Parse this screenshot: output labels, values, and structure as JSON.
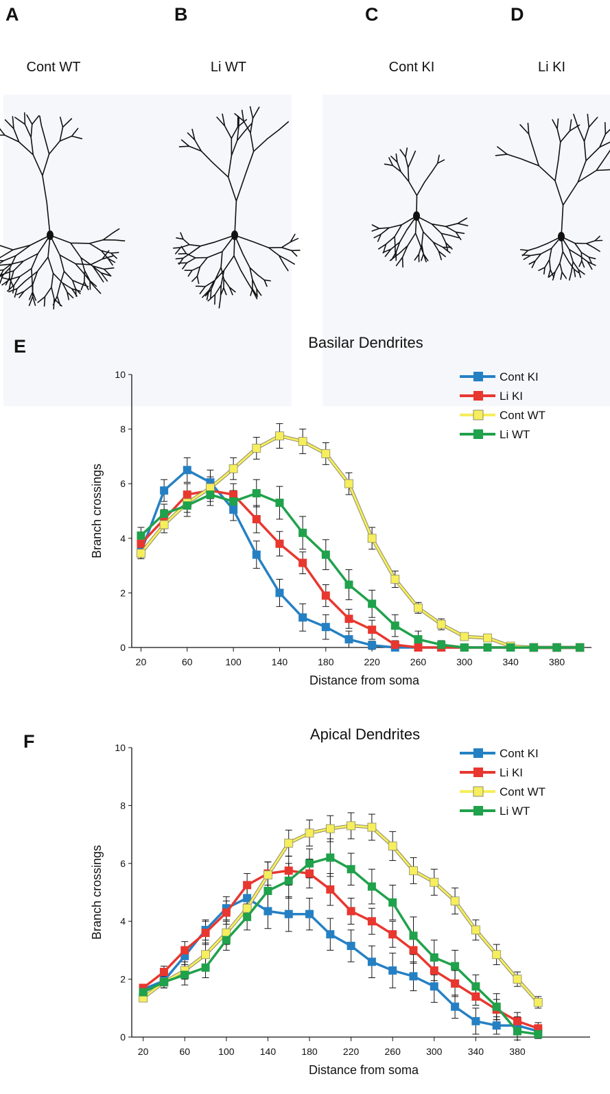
{
  "panels": {
    "labels": [
      "A",
      "B",
      "C",
      "D",
      "E",
      "F"
    ],
    "neuron_titles": [
      "Cont WT",
      "Li WT",
      "Cont KI",
      "Li KI"
    ]
  },
  "chart_data": [
    {
      "type": "line",
      "title": "Basilar Dendrites",
      "x_label": "Distance from soma",
      "y_label": "Branch crossings",
      "x": [
        20,
        40,
        60,
        80,
        100,
        120,
        140,
        160,
        180,
        200,
        220,
        240,
        260,
        280,
        300,
        320,
        340,
        360,
        380,
        400
      ],
      "xlim": [
        12,
        410
      ],
      "xticks": [
        20,
        60,
        100,
        140,
        180,
        220,
        260,
        300,
        340,
        380
      ],
      "ylim": [
        0,
        10
      ],
      "yticks": [
        0,
        2,
        4,
        6,
        8,
        10
      ],
      "legend": "upper right",
      "marker": "square",
      "series": [
        {
          "name": "Cont KI",
          "color": "#2580c3",
          "values": [
            3.5,
            5.75,
            6.5,
            6.05,
            5.05,
            3.4,
            2.0,
            1.1,
            0.75,
            0.3,
            0.08,
            0,
            0,
            0,
            0,
            0,
            0,
            0,
            0,
            0
          ],
          "errors": [
            0.2,
            0.4,
            0.45,
            0.45,
            0.4,
            0.5,
            0.5,
            0.5,
            0.45,
            0.3,
            0.15,
            0.05,
            0,
            0,
            0,
            0,
            0,
            0,
            0,
            0
          ]
        },
        {
          "name": "Li KI",
          "color": "#e8372f",
          "values": [
            3.8,
            4.7,
            5.6,
            5.75,
            5.6,
            4.7,
            3.8,
            3.1,
            1.9,
            1.05,
            0.65,
            0.1,
            0,
            0,
            0,
            0,
            0,
            0,
            0,
            0
          ],
          "errors": [
            0.3,
            0.35,
            0.4,
            0.4,
            0.4,
            0.5,
            0.45,
            0.4,
            0.4,
            0.35,
            0.35,
            0.15,
            0.05,
            0,
            0,
            0,
            0,
            0,
            0,
            0
          ]
        },
        {
          "name": "Cont WT",
          "color": "#f6ee5c",
          "edge": "#8c8a6e",
          "values": [
            3.45,
            4.5,
            5.3,
            5.85,
            6.55,
            7.3,
            7.75,
            7.55,
            7.1,
            6.0,
            4.0,
            2.5,
            1.45,
            0.85,
            0.4,
            0.35,
            0.05,
            0,
            0,
            0
          ],
          "errors": [
            0.2,
            0.3,
            0.35,
            0.4,
            0.4,
            0.4,
            0.45,
            0.45,
            0.4,
            0.4,
            0.4,
            0.3,
            0.2,
            0.2,
            0.1,
            0.1,
            0.05,
            0,
            0,
            0
          ]
        },
        {
          "name": "Li WT",
          "color": "#20a14b",
          "values": [
            4.1,
            4.9,
            5.2,
            5.6,
            5.35,
            5.65,
            5.3,
            4.2,
            3.4,
            2.3,
            1.6,
            0.8,
            0.3,
            0.1,
            0,
            0,
            0,
            0,
            0,
            0
          ],
          "errors": [
            0.3,
            0.35,
            0.4,
            0.4,
            0.4,
            0.5,
            0.6,
            0.6,
            0.55,
            0.55,
            0.5,
            0.4,
            0.3,
            0.15,
            0.05,
            0,
            0,
            0,
            0,
            0
          ]
        }
      ]
    },
    {
      "type": "line",
      "title": "Apical Dendrites",
      "x_label": "Distance from soma",
      "y_label": "Branch crossings",
      "x": [
        20,
        40,
        60,
        80,
        100,
        120,
        140,
        160,
        180,
        200,
        220,
        240,
        260,
        280,
        300,
        320,
        340,
        360,
        380,
        400
      ],
      "xlim": [
        9,
        450
      ],
      "xticks": [
        20,
        60,
        100,
        140,
        180,
        220,
        260,
        300,
        340,
        380
      ],
      "ylim": [
        0,
        10
      ],
      "yticks": [
        0,
        2,
        4,
        6,
        8,
        10
      ],
      "legend": "upper right",
      "marker": "square",
      "series": [
        {
          "name": "Cont KI",
          "color": "#2580c3",
          "values": [
            1.65,
            1.95,
            2.8,
            3.7,
            4.45,
            4.8,
            4.35,
            4.25,
            4.25,
            3.55,
            3.15,
            2.6,
            2.3,
            2.1,
            1.75,
            1.05,
            0.55,
            0.4,
            0.4,
            0.2
          ],
          "errors": [
            0.1,
            0.15,
            0.3,
            0.35,
            0.4,
            0.45,
            0.6,
            0.6,
            0.55,
            0.55,
            0.55,
            0.55,
            0.6,
            0.5,
            0.55,
            0.4,
            0.45,
            0.3,
            0.3,
            0.15
          ]
        },
        {
          "name": "Li KI",
          "color": "#e8372f",
          "values": [
            1.7,
            2.25,
            3.0,
            3.6,
            4.3,
            5.25,
            5.65,
            5.75,
            5.65,
            5.1,
            4.35,
            4.0,
            3.55,
            3.0,
            2.3,
            1.85,
            1.4,
            0.95,
            0.55,
            0.3
          ],
          "errors": [
            0.1,
            0.2,
            0.3,
            0.4,
            0.4,
            0.4,
            0.4,
            0.5,
            0.5,
            0.55,
            0.45,
            0.45,
            0.45,
            0.45,
            0.35,
            0.45,
            0.3,
            0.35,
            0.3,
            0.2
          ]
        },
        {
          "name": "Cont WT",
          "color": "#f6ee5c",
          "edge": "#8c8a6e",
          "values": [
            1.35,
            1.9,
            2.3,
            2.85,
            3.6,
            4.45,
            5.6,
            6.7,
            7.05,
            7.2,
            7.3,
            7.25,
            6.6,
            5.75,
            5.35,
            4.7,
            3.7,
            2.85,
            2.0,
            1.2
          ],
          "errors": [
            0.1,
            0.2,
            0.3,
            0.4,
            0.4,
            0.4,
            0.45,
            0.45,
            0.45,
            0.45,
            0.45,
            0.45,
            0.5,
            0.45,
            0.45,
            0.45,
            0.35,
            0.35,
            0.25,
            0.2
          ]
        },
        {
          "name": "Li WT",
          "color": "#20a14b",
          "values": [
            1.55,
            1.9,
            2.15,
            2.4,
            3.35,
            4.15,
            5.05,
            5.4,
            6.0,
            6.2,
            5.8,
            5.2,
            4.65,
            3.5,
            2.75,
            2.45,
            1.75,
            1.05,
            0.2,
            0.1
          ],
          "errors": [
            0.2,
            0.2,
            0.35,
            0.35,
            0.35,
            0.45,
            0.6,
            0.6,
            0.5,
            0.65,
            0.55,
            0.6,
            0.6,
            0.65,
            0.6,
            0.55,
            0.4,
            0.45,
            0.3,
            0.15
          ]
        }
      ]
    }
  ]
}
